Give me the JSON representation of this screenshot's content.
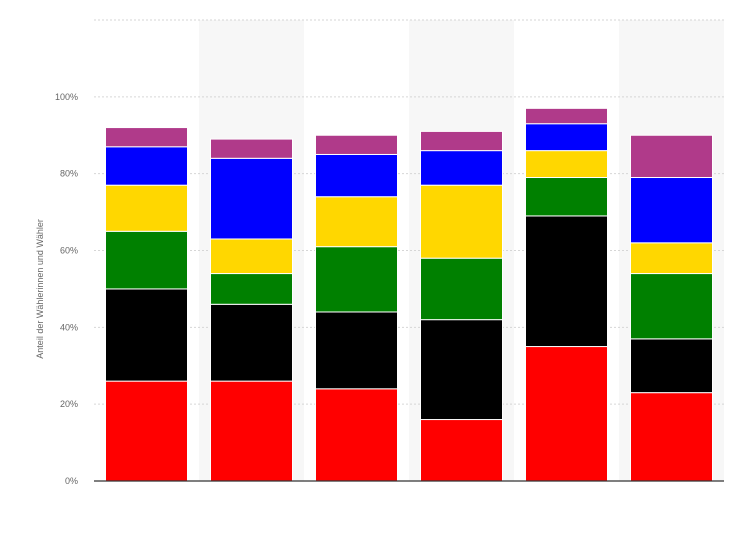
{
  "chart_data": {
    "type": "bar",
    "stacked": true,
    "title": "",
    "xlabel": "",
    "ylabel": "Anteil der Wählerinnen und Wähler",
    "ylim": [
      0,
      120
    ],
    "yticks": [
      0,
      20,
      40,
      60,
      80,
      100
    ],
    "ytick_labels": [
      "0%",
      "20%",
      "40%",
      "60%",
      "80%",
      "100%"
    ],
    "grid": true,
    "legend": "none",
    "categories": [
      "",
      "",
      "",
      "",
      "",
      ""
    ],
    "series": [
      {
        "color": "#ff0000",
        "values": [
          26,
          26,
          24,
          16,
          35,
          23
        ]
      },
      {
        "color": "#000000",
        "values": [
          24,
          20,
          20,
          26,
          34,
          14
        ]
      },
      {
        "color": "#008000",
        "values": [
          15,
          8,
          17,
          16,
          10,
          17
        ]
      },
      {
        "color": "#ffd700",
        "values": [
          12,
          9,
          13,
          19,
          7,
          8
        ]
      },
      {
        "color": "#0000ff",
        "values": [
          10,
          21,
          11,
          9,
          7,
          17
        ]
      },
      {
        "color": "#b03a8a",
        "values": [
          5,
          5,
          5,
          5,
          4,
          11
        ]
      }
    ]
  }
}
